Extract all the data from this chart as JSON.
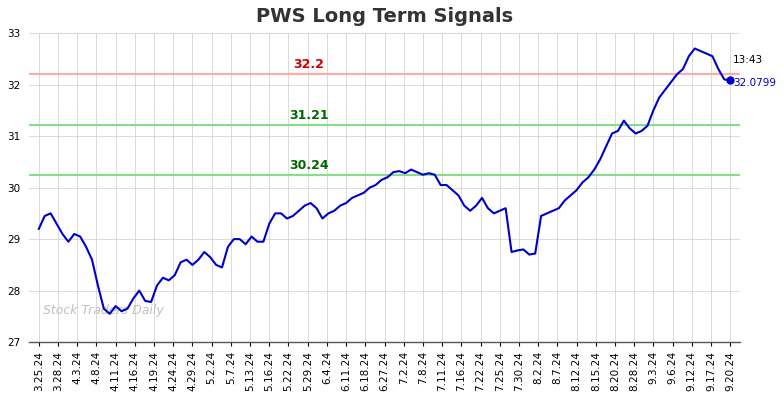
{
  "title": "PWS Long Term Signals",
  "watermark": "Stock Traders Daily",
  "hline_red": 32.2,
  "hline_green1": 31.21,
  "hline_green2": 30.24,
  "label_red": "32.2",
  "label_green1": "31.21",
  "label_green2": "30.24",
  "last_time": "13:43",
  "last_value": 32.0799,
  "ylim": [
    27,
    33
  ],
  "yticks": [
    27,
    28,
    29,
    30,
    31,
    32,
    33
  ],
  "x_labels": [
    "3.25.24",
    "3.28.24",
    "4.3.24",
    "4.8.24",
    "4.11.24",
    "4.16.24",
    "4.19.24",
    "4.24.24",
    "4.29.24",
    "5.2.24",
    "5.7.24",
    "5.13.24",
    "5.16.24",
    "5.22.24",
    "5.29.24",
    "6.4.24",
    "6.11.24",
    "6.18.24",
    "6.27.24",
    "7.2.24",
    "7.8.24",
    "7.11.24",
    "7.16.24",
    "7.22.24",
    "7.25.24",
    "7.30.24",
    "8.2.24",
    "8.7.24",
    "8.12.24",
    "8.15.24",
    "8.20.24",
    "8.28.24",
    "9.3.24",
    "9.6.24",
    "9.12.24",
    "9.17.24",
    "9.20.24"
  ],
  "y_values": [
    29.2,
    29.45,
    29.5,
    29.3,
    29.1,
    28.95,
    29.1,
    29.05,
    28.85,
    28.6,
    28.1,
    27.65,
    27.55,
    27.7,
    27.6,
    27.65,
    27.85,
    28.0,
    27.8,
    27.78,
    28.1,
    28.25,
    28.2,
    28.3,
    28.55,
    28.6,
    28.5,
    28.6,
    28.75,
    28.65,
    28.5,
    28.45,
    28.85,
    29.0,
    29.0,
    28.9,
    29.05,
    28.95,
    28.95,
    29.3,
    29.5,
    29.5,
    29.4,
    29.45,
    29.55,
    29.65,
    29.7,
    29.6,
    29.4,
    29.5,
    29.55,
    29.65,
    29.7,
    29.8,
    29.85,
    29.9,
    30.0,
    30.05,
    30.15,
    30.2,
    30.3,
    30.32,
    30.28,
    30.35,
    30.3,
    30.25,
    30.28,
    30.25,
    30.05,
    30.05,
    29.95,
    29.85,
    29.65,
    29.55,
    29.65,
    29.8,
    29.6,
    29.5,
    29.55,
    29.6,
    28.75,
    28.78,
    28.8,
    28.7,
    28.72,
    29.45,
    29.5,
    29.55,
    29.6,
    29.75,
    29.85,
    29.95,
    30.1,
    30.2,
    30.35,
    30.55,
    30.8,
    31.05,
    31.1,
    31.3,
    31.15,
    31.05,
    31.1,
    31.2,
    31.5,
    31.75,
    31.9,
    32.05,
    32.2,
    32.3,
    32.55,
    32.7,
    32.65,
    32.6,
    32.55,
    32.3,
    32.1,
    32.0799
  ],
  "line_color": "#0000cc",
  "hline_red_color": "#ffaaaa",
  "hline_red_text_color": "#cc0000",
  "hline_green_color": "#88dd88",
  "hline_green_text_color": "#006600",
  "background_color": "#ffffff",
  "grid_color": "#cccccc",
  "watermark_color": "#c0c0c0",
  "title_fontsize": 14,
  "axis_fontsize": 7.5,
  "annotation_fontsize": 9
}
